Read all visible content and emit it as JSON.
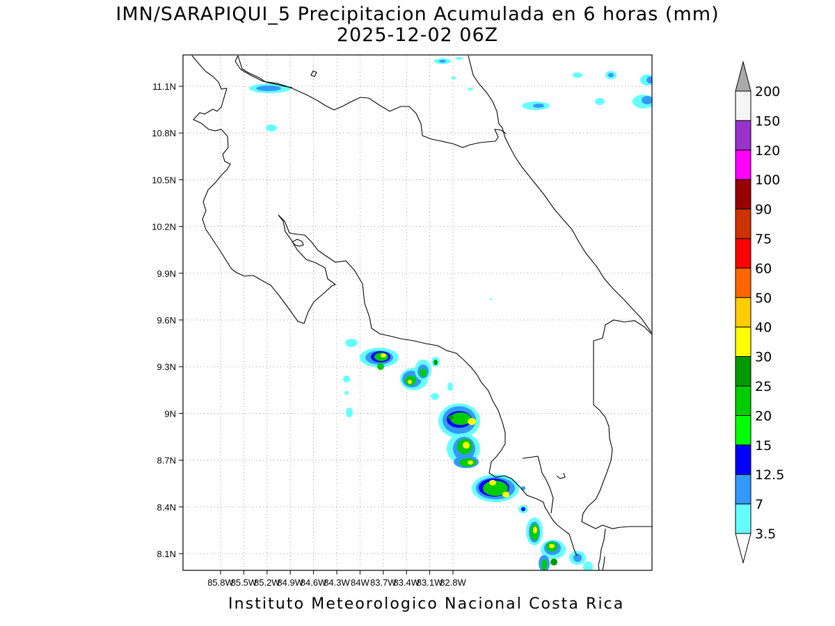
{
  "title": {
    "line1": "IMN/SARAPIQUI_5 Precipitacion Acumulada en 6 horas (mm)",
    "line2": "2025-12-02 06Z"
  },
  "footer": "Instituto Meteorologico Nacional Costa Rica",
  "map": {
    "lon_range": [
      -86.0,
      -83.0
    ],
    "lat_range": [
      8.0,
      11.3
    ],
    "lon_ticks": [
      {
        "value": -85.8,
        "label": "85.8W"
      },
      {
        "value": -85.5,
        "label": "85.5W"
      },
      {
        "value": -85.2,
        "label": "85.2W"
      },
      {
        "value": -84.9,
        "label": "84.9W"
      },
      {
        "value": -84.6,
        "label": "84.6W"
      },
      {
        "value": -84.3,
        "label": "84.3W"
      },
      {
        "value": -84.0,
        "label": "84W"
      },
      {
        "value": -83.7,
        "label": "83.7W"
      },
      {
        "value": -83.4,
        "label": "83.4W"
      },
      {
        "value": -83.1,
        "label": "83.1W"
      },
      {
        "value": -82.8,
        "label": "82.8W"
      }
    ],
    "lat_ticks": [
      {
        "value": 11.1,
        "label": "11.1N"
      },
      {
        "value": 10.8,
        "label": "10.8N"
      },
      {
        "value": 10.5,
        "label": "10.5N"
      },
      {
        "value": 10.2,
        "label": "10.2N"
      },
      {
        "value": 9.9,
        "label": "9.9N"
      },
      {
        "value": 9.6,
        "label": "9.6N"
      },
      {
        "value": 9.3,
        "label": "9.3N"
      },
      {
        "value": 9.0,
        "label": "9N"
      },
      {
        "value": 8.7,
        "label": "8.7N"
      },
      {
        "value": 8.4,
        "label": "8.4N"
      },
      {
        "value": 8.1,
        "label": "8.1N"
      }
    ],
    "grid": "dotted"
  },
  "colorbar": {
    "levels": [
      {
        "label": "3.5",
        "color": "#66ffff"
      },
      {
        "label": "7",
        "color": "#3399ff"
      },
      {
        "label": "12.5",
        "color": "#0000ff"
      },
      {
        "label": "15",
        "color": "#00ff00"
      },
      {
        "label": "20",
        "color": "#00cc00"
      },
      {
        "label": "25",
        "color": "#009900"
      },
      {
        "label": "30",
        "color": "#ffff00"
      },
      {
        "label": "40",
        "color": "#ffcc00"
      },
      {
        "label": "50",
        "color": "#ff6600"
      },
      {
        "label": "60",
        "color": "#ff0000"
      },
      {
        "label": "75",
        "color": "#cc3300"
      },
      {
        "label": "90",
        "color": "#990000"
      },
      {
        "label": "100",
        "color": "#ff00ff"
      },
      {
        "label": "120",
        "color": "#9933cc"
      },
      {
        "label": "150",
        "color": "#f5f5f5"
      },
      {
        "label": "200",
        "color": "#aaaaaa"
      }
    ]
  }
}
